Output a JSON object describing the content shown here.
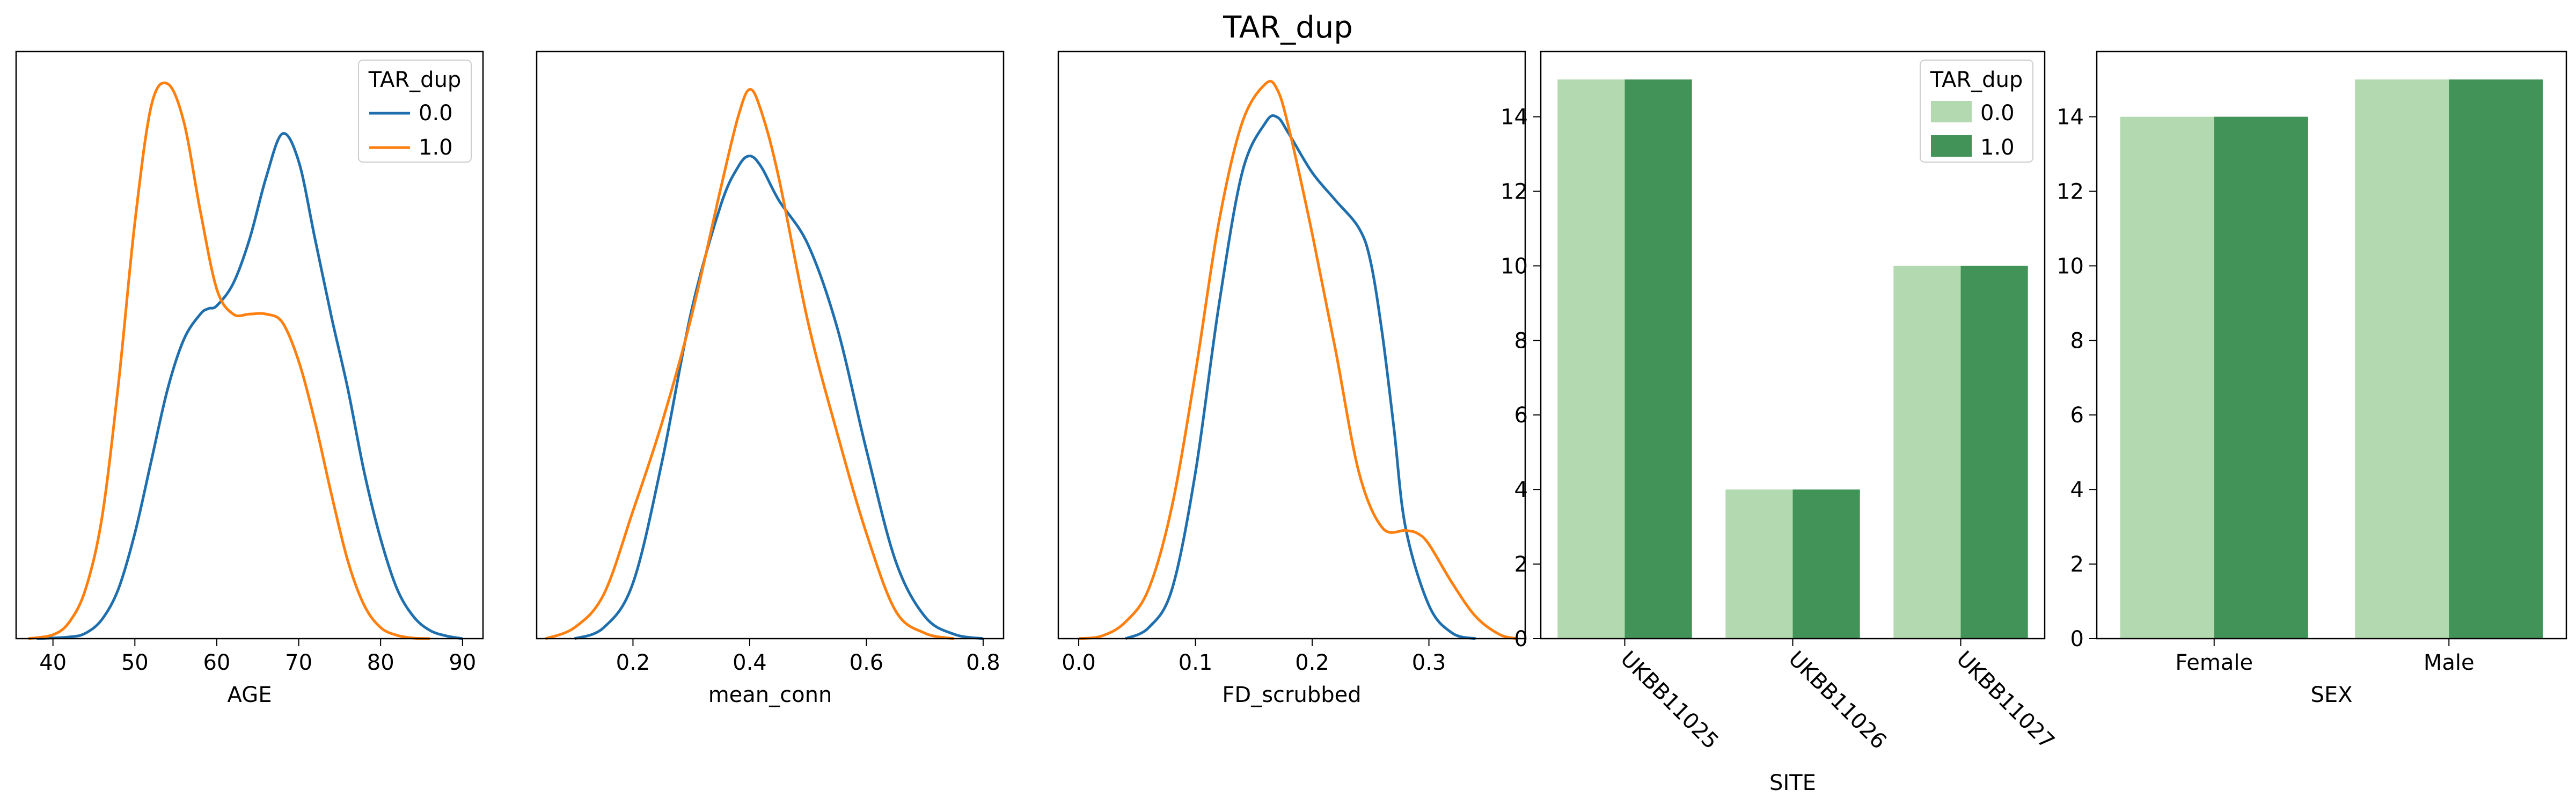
{
  "figure": {
    "suptitle": "TAR_dup"
  },
  "colors": {
    "kde_0": "#1f6fae",
    "kde_1": "#ff7f0e",
    "bar_0": "#b3d9b0",
    "bar_1": "#419358"
  },
  "chart_data": [
    {
      "type": "line",
      "xlabel": "AGE",
      "xlim": [
        35.5,
        92.5
      ],
      "xticks": [
        40,
        50,
        60,
        70,
        80,
        90
      ],
      "ylabel": "",
      "legend": {
        "title": "TAR_dup",
        "position": "top-right",
        "labels": [
          "0.0",
          "1.0"
        ]
      },
      "series": [
        {
          "name": "0.0",
          "x": [
            38,
            42,
            44,
            46,
            48,
            50,
            52,
            54,
            56,
            58,
            59,
            60,
            62,
            64,
            66,
            68,
            70,
            72,
            74,
            76,
            78,
            80,
            82,
            84,
            86,
            88,
            90
          ],
          "y": [
            0,
            0.003,
            0.01,
            0.035,
            0.09,
            0.19,
            0.32,
            0.45,
            0.54,
            0.585,
            0.595,
            0.6,
            0.64,
            0.72,
            0.83,
            0.91,
            0.86,
            0.72,
            0.58,
            0.45,
            0.3,
            0.18,
            0.09,
            0.04,
            0.015,
            0.005,
            0
          ]
        },
        {
          "name": "1.0",
          "x": [
            37,
            40,
            42,
            44,
            46,
            48,
            50,
            52,
            54,
            56,
            58,
            60,
            62,
            64,
            66,
            68,
            70,
            72,
            74,
            76,
            78,
            80,
            82,
            84,
            86
          ],
          "y": [
            0,
            0.007,
            0.03,
            0.09,
            0.22,
            0.46,
            0.75,
            0.96,
            1.0,
            0.93,
            0.77,
            0.63,
            0.585,
            0.585,
            0.585,
            0.57,
            0.5,
            0.39,
            0.26,
            0.14,
            0.06,
            0.02,
            0.006,
            0.001,
            0
          ]
        }
      ]
    },
    {
      "type": "line",
      "xlabel": "mean_conn",
      "xlim": [
        0.035,
        0.835
      ],
      "xticks": [
        0.2,
        0.4,
        0.6,
        0.8
      ],
      "ylabel": "",
      "series": [
        {
          "name": "0.0",
          "x": [
            0.1,
            0.15,
            0.2,
            0.25,
            0.3,
            0.35,
            0.38,
            0.4,
            0.42,
            0.45,
            0.5,
            0.55,
            0.6,
            0.65,
            0.7,
            0.75,
            0.8
          ],
          "y": [
            0,
            0.02,
            0.1,
            0.32,
            0.59,
            0.78,
            0.85,
            0.87,
            0.85,
            0.79,
            0.71,
            0.56,
            0.34,
            0.14,
            0.04,
            0.008,
            0
          ]
        },
        {
          "name": "1.0",
          "x": [
            0.05,
            0.1,
            0.15,
            0.2,
            0.25,
            0.3,
            0.35,
            0.38,
            0.4,
            0.42,
            0.45,
            0.5,
            0.55,
            0.6,
            0.65,
            0.7,
            0.75
          ],
          "y": [
            0,
            0.02,
            0.08,
            0.23,
            0.39,
            0.58,
            0.81,
            0.94,
            0.99,
            0.95,
            0.83,
            0.57,
            0.37,
            0.19,
            0.05,
            0.01,
            0
          ]
        }
      ]
    },
    {
      "type": "line",
      "xlabel": "FD_scrubbed",
      "xlim": [
        -0.0175,
        0.3825
      ],
      "xticks": [
        0.0,
        0.1,
        0.2,
        0.3
      ],
      "xticklabels": [
        "0.0",
        "0.1",
        "0.2",
        "0.3"
      ],
      "ylabel": "",
      "series": [
        {
          "name": "0.0",
          "x": [
            0.04,
            0.06,
            0.08,
            0.1,
            0.12,
            0.14,
            0.16,
            0.17,
            0.18,
            0.2,
            0.22,
            0.24,
            0.25,
            0.26,
            0.27,
            0.28,
            0.3,
            0.32,
            0.34
          ],
          "y": [
            0,
            0.02,
            0.09,
            0.3,
            0.6,
            0.84,
            0.93,
            0.94,
            0.91,
            0.84,
            0.79,
            0.74,
            0.68,
            0.55,
            0.38,
            0.2,
            0.06,
            0.01,
            0
          ]
        },
        {
          "name": "1.0",
          "x": [
            0.0,
            0.02,
            0.04,
            0.06,
            0.08,
            0.1,
            0.12,
            0.14,
            0.16,
            0.17,
            0.18,
            0.2,
            0.22,
            0.24,
            0.26,
            0.28,
            0.29,
            0.3,
            0.32,
            0.34,
            0.36,
            0.375
          ],
          "y": [
            0,
            0.005,
            0.03,
            0.09,
            0.24,
            0.48,
            0.75,
            0.93,
            1.0,
            0.99,
            0.92,
            0.73,
            0.52,
            0.3,
            0.2,
            0.195,
            0.19,
            0.17,
            0.1,
            0.04,
            0.008,
            0
          ]
        }
      ]
    },
    {
      "type": "bar",
      "xlabel": "SITE",
      "categories": [
        "UKBB11025",
        "UKBB11026",
        "UKBB11027"
      ],
      "ylim": [
        0,
        15.75
      ],
      "yticks": [
        0,
        2,
        4,
        6,
        8,
        10,
        12,
        14
      ],
      "legend": {
        "title": "TAR_dup",
        "position": "top-right",
        "labels": [
          "0.0",
          "1.0"
        ]
      },
      "series": [
        {
          "name": "0.0",
          "values": [
            15,
            4,
            10
          ]
        },
        {
          "name": "1.0",
          "values": [
            15,
            4,
            10
          ]
        }
      ]
    },
    {
      "type": "bar",
      "xlabel": "SEX",
      "categories": [
        "Female",
        "Male"
      ],
      "ylim": [
        0,
        15.75
      ],
      "yticks": [
        0,
        2,
        4,
        6,
        8,
        10,
        12,
        14
      ],
      "series": [
        {
          "name": "0.0",
          "values": [
            14,
            15
          ]
        },
        {
          "name": "1.0",
          "values": [
            14,
            15
          ]
        }
      ]
    }
  ]
}
